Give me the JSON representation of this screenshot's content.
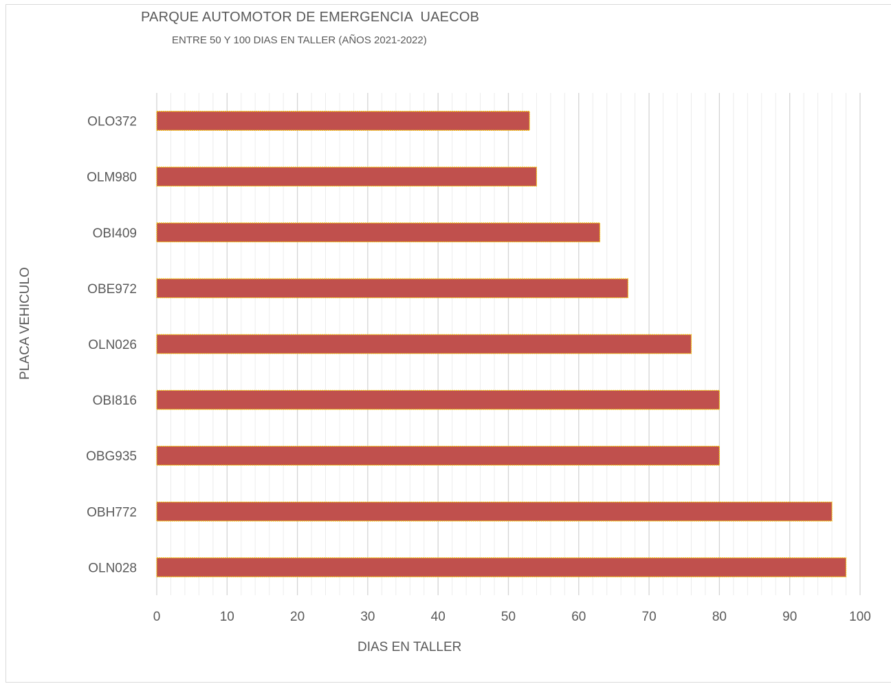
{
  "chart_data": {
    "type": "bar",
    "orientation": "horizontal",
    "title": "PARQUE AUTOMOTOR DE EMERGENCIA  UAECOB",
    "subtitle": "ENTRE 50 Y 100 DIAS EN TALLER (AÑOS 2021-2022)",
    "xlabel": "DIAS EN TALLER",
    "ylabel": "PLACA VEHICULO",
    "categories": [
      "OLO372",
      "OLM980",
      "OBI409",
      "OBE972",
      "OLN026",
      "OBI816",
      "OBG935",
      "OBH772",
      "OLN028"
    ],
    "values": [
      53,
      54,
      63,
      67,
      76,
      80,
      80,
      96,
      98
    ],
    "xlim": [
      0,
      100
    ],
    "xticks": [
      0,
      10,
      20,
      30,
      40,
      50,
      60,
      70,
      80,
      90,
      100
    ],
    "grid": true,
    "minor_grid": true,
    "legend": "none",
    "bar_color": "#c0504d",
    "bar_edge_color": "#f2c100"
  }
}
